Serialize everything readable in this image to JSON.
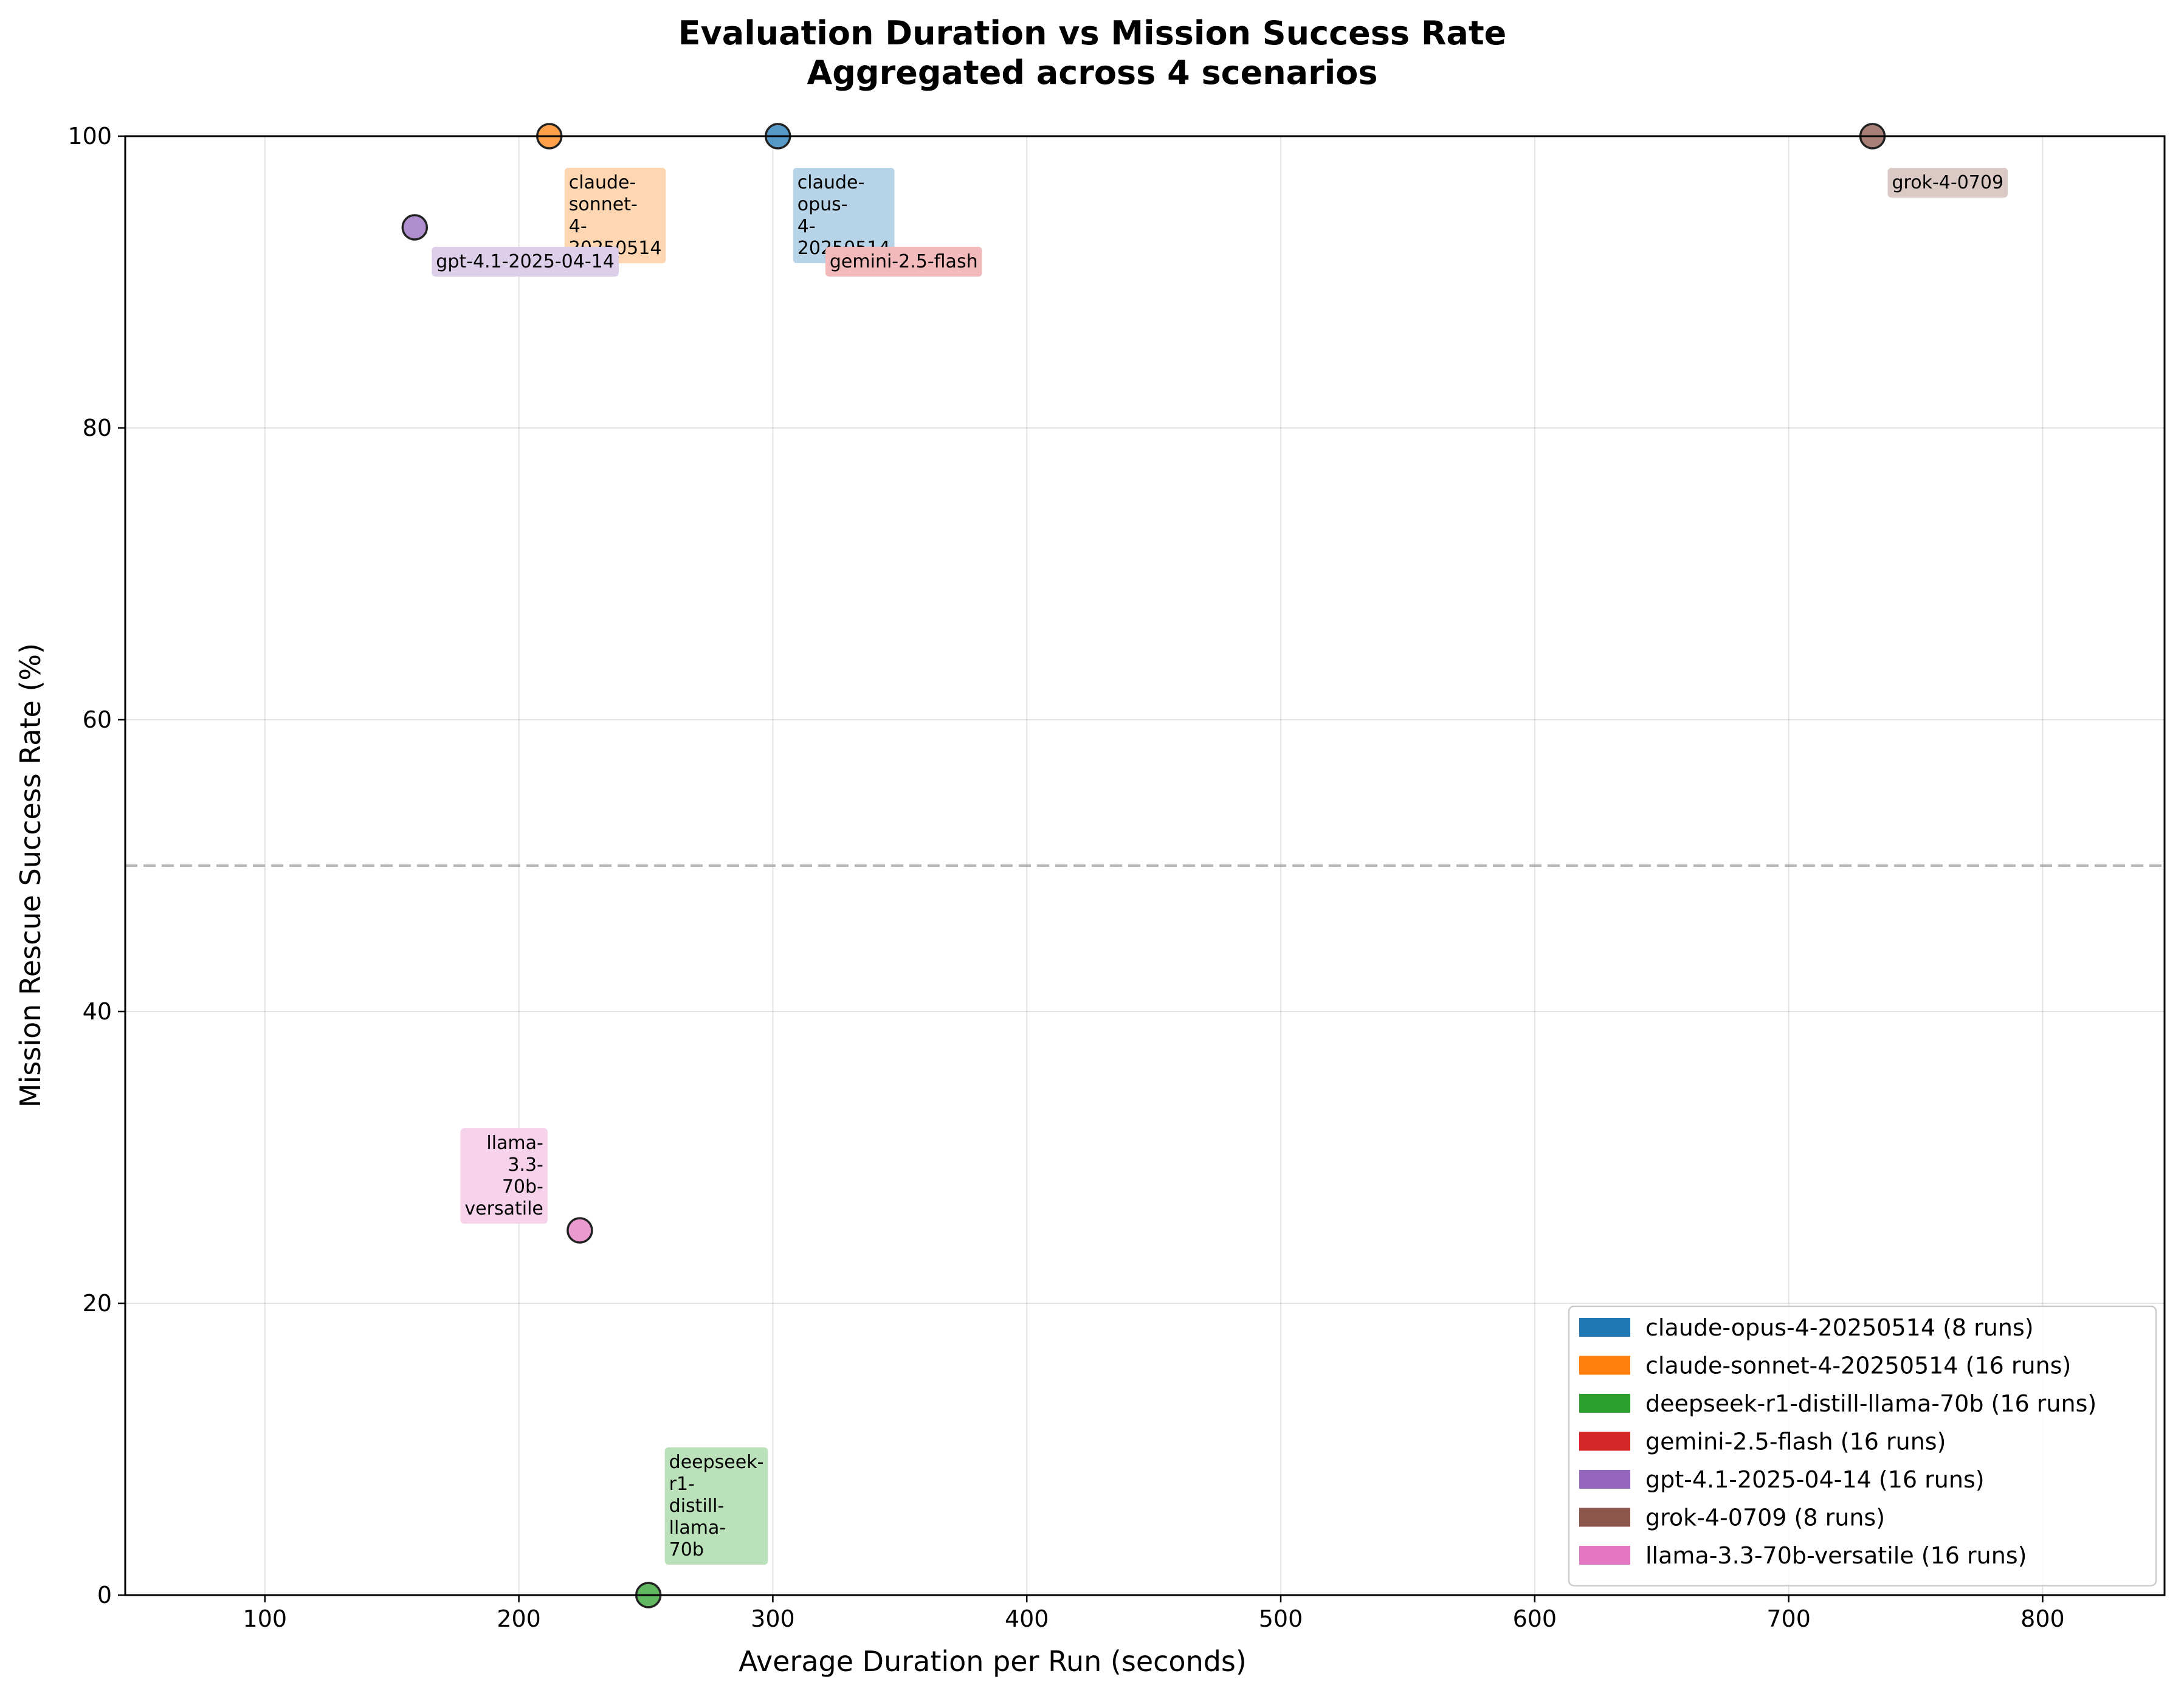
{
  "chart_data": {
    "type": "scatter",
    "title": "Evaluation Duration vs Mission Success Rate",
    "subtitle": "Aggregated across 4 scenarios",
    "xlabel": "Average Duration per Run (seconds)",
    "ylabel": "Mission Rescue Success Rate (%)",
    "xlim": [
      45,
      848
    ],
    "ylim": [
      0,
      100
    ],
    "xticks": [
      100,
      200,
      300,
      400,
      500,
      600,
      700,
      800
    ],
    "yticks": [
      0,
      20,
      40,
      60,
      80,
      100
    ],
    "grid": true,
    "reference_line_y": 50,
    "legend_position": "lower-right",
    "series": [
      {
        "name": "claude-opus-4-20250514",
        "legend": "claude-opus-4-20250514 (8 runs)",
        "color": "#1f77b4",
        "x": 302,
        "y": 100,
        "label_lines": [
          "claude-",
          "opus-",
          "4-",
          "20250514"
        ]
      },
      {
        "name": "claude-sonnet-4-20250514",
        "legend": "claude-sonnet-4-20250514 (16 runs)",
        "color": "#ff7f0e",
        "x": 212,
        "y": 100,
        "label_lines": [
          "claude-",
          "sonnet-",
          "4-",
          "20250514"
        ]
      },
      {
        "name": "deepseek-r1-distill-llama-70b",
        "legend": "deepseek-r1-distill-llama-70b (16 runs)",
        "color": "#2ca02c",
        "x": 251,
        "y": 0,
        "label_lines": [
          "deepseek-",
          "r1-",
          "distill-",
          "llama-",
          "70b"
        ]
      },
      {
        "name": "gemini-2.5-flash",
        "legend": "gemini-2.5-flash (16 runs)",
        "color": "#d62728",
        "x": 314,
        "y": 93.75,
        "label_lines": [
          "gemini-2.5-flash"
        ]
      },
      {
        "name": "gpt-4.1-2025-04-14",
        "legend": "gpt-4.1-2025-04-14 (16 runs)",
        "color": "#9467bd",
        "x": 159,
        "y": 93.75,
        "label_lines": [
          "gpt-4.1-2025-04-14"
        ]
      },
      {
        "name": "grok-4-0709",
        "legend": "grok-4-0709 (8 runs)",
        "color": "#8c564b",
        "x": 733,
        "y": 100,
        "label_lines": [
          "grok-4-0709"
        ]
      },
      {
        "name": "llama-3.3-70b-versatile",
        "legend": "llama-3.3-70b-versatile (16 runs)",
        "color": "#e377c2",
        "x": 224,
        "y": 25,
        "label_lines": [
          "llama-",
          "3.3-",
          "70b-",
          "versatile"
        ]
      }
    ]
  }
}
